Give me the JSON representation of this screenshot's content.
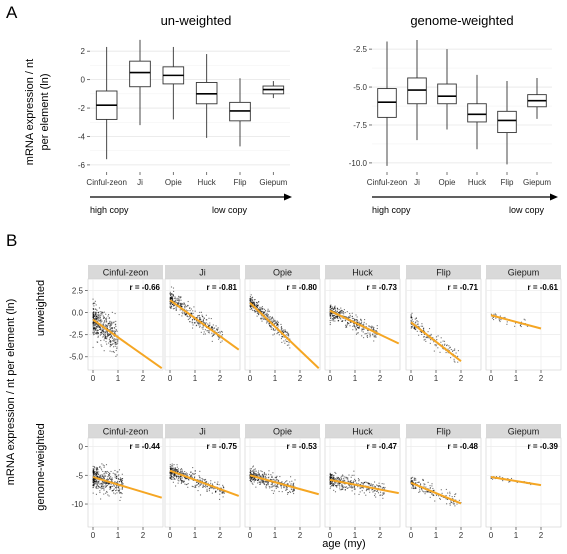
{
  "panel_a": {
    "label": "A",
    "ylabel_line1": "mRNA expression / nt",
    "ylabel_line2": "per element (ln)",
    "arrow_left": "high copy",
    "arrow_right": "low copy"
  },
  "panel_b": {
    "label": "B",
    "ylabel": "mRNA expression / nt  per element (ln)",
    "xlabel": "age (my)",
    "row_labels": [
      "unweighted",
      "genome-weighted"
    ]
  },
  "chart_data": [
    {
      "type": "box",
      "title": "un-weighted",
      "categories": [
        "Cinful-zeon",
        "Ji",
        "Opie",
        "Huck",
        "Flip",
        "Giepum"
      ],
      "ylim": [
        -6.5,
        3.0
      ],
      "yticks": [
        2,
        0,
        -2,
        -4,
        -6
      ],
      "ytick_labels": [
        "2",
        "0",
        "-2",
        "-4",
        "-6"
      ],
      "grid": true,
      "boxes": [
        {
          "category": "Cinful-zeon",
          "whisker_low": -5.6,
          "q1": -2.8,
          "median": -1.8,
          "q3": -0.8,
          "whisker_high": 2.3
        },
        {
          "category": "Ji",
          "whisker_low": -3.2,
          "q1": -0.5,
          "median": 0.5,
          "q3": 1.3,
          "whisker_high": 2.8
        },
        {
          "category": "Opie",
          "whisker_low": -2.8,
          "q1": -0.3,
          "median": 0.3,
          "q3": 0.9,
          "whisker_high": 2.3
        },
        {
          "category": "Huck",
          "whisker_low": -4.1,
          "q1": -1.7,
          "median": -1.0,
          "q3": -0.2,
          "whisker_high": 1.8
        },
        {
          "category": "Flip",
          "whisker_low": -4.7,
          "q1": -2.9,
          "median": -2.2,
          "q3": -1.6,
          "whisker_high": 0.1
        },
        {
          "category": "Giepum",
          "whisker_low": -1.3,
          "q1": -1.0,
          "median": -0.7,
          "q3": -0.45,
          "whisker_high": -0.1
        }
      ]
    },
    {
      "type": "box",
      "title": "genome-weighted",
      "categories": [
        "Cinful-zeon",
        "Ji",
        "Opie",
        "Huck",
        "Flip",
        "Giepum"
      ],
      "ylim": [
        -10.6,
        -1.7
      ],
      "yticks": [
        -2.5,
        -5.0,
        -7.5,
        -10.0
      ],
      "ytick_labels": [
        "-2.5",
        "-5.0",
        "-7.5",
        "-10.0"
      ],
      "grid": true,
      "boxes": [
        {
          "category": "Cinful-zeon",
          "whisker_low": -10.2,
          "q1": -7.0,
          "median": -6.0,
          "q3": -5.1,
          "whisker_high": -2.0
        },
        {
          "category": "Ji",
          "whisker_low": -8.5,
          "q1": -6.1,
          "median": -5.2,
          "q3": -4.4,
          "whisker_high": -1.9
        },
        {
          "category": "Opie",
          "whisker_low": -7.8,
          "q1": -6.1,
          "median": -5.6,
          "q3": -4.8,
          "whisker_high": -2.5
        },
        {
          "category": "Huck",
          "whisker_low": -9.1,
          "q1": -7.3,
          "median": -6.8,
          "q3": -6.1,
          "whisker_high": -4.2
        },
        {
          "category": "Flip",
          "whisker_low": -10.1,
          "q1": -8.0,
          "median": -7.2,
          "q3": -6.6,
          "whisker_high": -4.6
        },
        {
          "category": "Giepum",
          "whisker_low": -7.1,
          "q1": -6.3,
          "median": -5.9,
          "q3": -5.5,
          "whisker_high": -4.4
        }
      ]
    },
    {
      "type": "scatter",
      "row": "unweighted",
      "xlim": [
        -0.2,
        2.8
      ],
      "ylim": [
        -6.5,
        3.8
      ],
      "xticks": [
        0,
        1,
        2
      ],
      "xtick_labels": [
        "0",
        "1",
        "2"
      ],
      "yticks": [
        2.5,
        0.0,
        -2.5,
        -5.0
      ],
      "ytick_labels": [
        "2.5",
        "0.0",
        "-2.5",
        "-5.0"
      ],
      "grid": true,
      "trend_color": "#F5A623",
      "point_color": "#000000",
      "panels": [
        {
          "name": "Cinful-zeon",
          "r_label": "r = -0.66",
          "fit_x": [
            0,
            2.75
          ],
          "fit_y": [
            -0.8,
            -6.3
          ],
          "age_max": 1.0,
          "center_y": -1.7,
          "spread": 1.6,
          "n_points": 420
        },
        {
          "name": "Ji",
          "r_label": "r = -0.81",
          "fit_x": [
            0,
            2.75
          ],
          "fit_y": [
            1.4,
            -4.2
          ],
          "age_max": 2.1,
          "center_y": 0.3,
          "spread": 0.9,
          "n_points": 360
        },
        {
          "name": "Opie",
          "r_label": "r = -0.80",
          "fit_x": [
            0,
            2.75
          ],
          "fit_y": [
            1.1,
            -6.3
          ],
          "age_max": 1.6,
          "center_y": 0.0,
          "spread": 0.8,
          "n_points": 340
        },
        {
          "name": "Huck",
          "r_label": "r = -0.73",
          "fit_x": [
            0,
            2.75
          ],
          "fit_y": [
            0.2,
            -3.5
          ],
          "age_max": 1.9,
          "center_y": -0.9,
          "spread": 0.8,
          "n_points": 330
        },
        {
          "name": "Flip",
          "r_label": "r = -0.71",
          "fit_x": [
            0,
            2.0
          ],
          "fit_y": [
            -1.1,
            -5.5
          ],
          "age_max": 1.9,
          "center_y": -2.2,
          "spread": 0.8,
          "n_points": 160
        },
        {
          "name": "Giepum",
          "r_label": "r = -0.61",
          "fit_x": [
            0,
            2.0
          ],
          "fit_y": [
            -0.3,
            -1.8
          ],
          "age_max": 1.6,
          "center_y": -0.8,
          "spread": 0.4,
          "n_points": 40
        }
      ]
    },
    {
      "type": "scatter",
      "row": "genome-weighted",
      "xlim": [
        -0.2,
        2.8
      ],
      "ylim": [
        -14.0,
        1.5
      ],
      "xticks": [
        0,
        1,
        2
      ],
      "xtick_labels": [
        "0",
        "1",
        "2"
      ],
      "yticks": [
        0,
        -5,
        -10
      ],
      "ytick_labels": [
        "0",
        "-5",
        "-10"
      ],
      "grid": true,
      "trend_color": "#F5A623",
      "point_color": "#000000",
      "panels": [
        {
          "name": "Cinful-zeon",
          "r_label": "r = -0.44",
          "fit_x": [
            0,
            2.75
          ],
          "fit_y": [
            -5.3,
            -8.9
          ],
          "age_max": 1.2,
          "center_y": -6.2,
          "spread": 2.0,
          "n_points": 420
        },
        {
          "name": "Ji",
          "r_label": "r = -0.75",
          "fit_x": [
            0,
            2.75
          ],
          "fit_y": [
            -4.2,
            -8.6
          ],
          "age_max": 2.2,
          "center_y": -5.6,
          "spread": 1.2,
          "n_points": 360
        },
        {
          "name": "Opie",
          "r_label": "r = -0.53",
          "fit_x": [
            0,
            2.75
          ],
          "fit_y": [
            -5.0,
            -8.3
          ],
          "age_max": 1.8,
          "center_y": -5.8,
          "spread": 1.2,
          "n_points": 340
        },
        {
          "name": "Huck",
          "r_label": "r = -0.47",
          "fit_x": [
            0,
            2.75
          ],
          "fit_y": [
            -5.8,
            -8.1
          ],
          "age_max": 2.2,
          "center_y": -6.5,
          "spread": 1.2,
          "n_points": 330
        },
        {
          "name": "Flip",
          "r_label": "r = -0.48",
          "fit_x": [
            0,
            2.0
          ],
          "fit_y": [
            -6.3,
            -9.9
          ],
          "age_max": 2.0,
          "center_y": -7.4,
          "spread": 1.1,
          "n_points": 160
        },
        {
          "name": "Giepum",
          "r_label": "r = -0.39",
          "fit_x": [
            0,
            2.0
          ],
          "fit_y": [
            -5.3,
            -6.7
          ],
          "age_max": 1.6,
          "center_y": -5.8,
          "spread": 0.4,
          "n_points": 40
        }
      ]
    }
  ]
}
